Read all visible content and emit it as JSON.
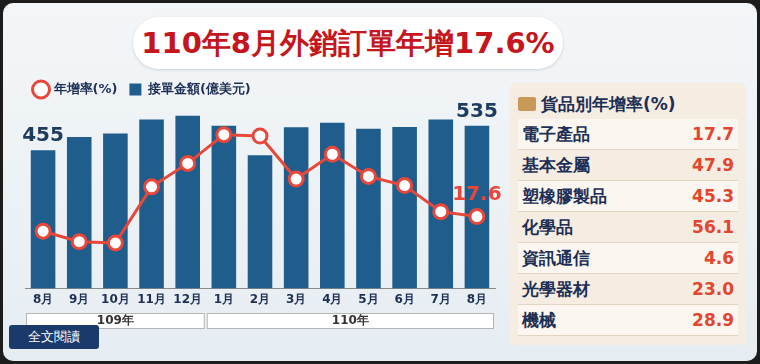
{
  "chart_data": {
    "type": "bar",
    "title": "110年8月外銷訂單年增17.6%",
    "categories": [
      "8月",
      "9月",
      "10月",
      "11月",
      "12月",
      "1月",
      "2月",
      "3月",
      "4月",
      "5月",
      "6月",
      "7月",
      "8月"
    ],
    "groups": [
      {
        "label": "109年",
        "count": 5
      },
      {
        "label": "110年",
        "count": 8
      }
    ],
    "series": [
      {
        "name": "接單金額(億美元)",
        "type": "bar",
        "color": "#1f5d8c",
        "values": [
          455,
          498,
          510,
          556,
          568,
          535,
          438,
          530,
          545,
          525,
          531,
          556,
          535
        ],
        "value_labels": [
          "455",
          null,
          null,
          null,
          null,
          null,
          null,
          null,
          null,
          null,
          null,
          null,
          "535"
        ]
      },
      {
        "name": "年增率(%)",
        "type": "line",
        "axis": "y2",
        "color": "#e8473a",
        "marker": "circle",
        "line_style": "solid",
        "values": [
          12,
          8,
          7.5,
          29,
          38,
          49,
          48.5,
          32,
          41.5,
          33,
          29.5,
          19.5,
          17.6
        ],
        "value_labels": [
          null,
          null,
          null,
          null,
          null,
          null,
          null,
          null,
          null,
          null,
          null,
          null,
          "17.6"
        ]
      }
    ],
    "ylim": [
      0,
      600
    ],
    "y2lim": [
      -10,
      60
    ],
    "legend": "top-left",
    "tick_labels": "x",
    "grid": false
  },
  "side_panel": {
    "title": "貨品別年增率(%)",
    "rows": [
      {
        "name": "電子產品",
        "value": "17.7"
      },
      {
        "name": "基本金屬",
        "value": "47.9"
      },
      {
        "name": "塑橡膠製品",
        "value": "45.3"
      },
      {
        "name": "化學品",
        "value": "56.1"
      },
      {
        "name": "資訊通信",
        "value": "4.6"
      },
      {
        "name": "光學器材",
        "value": "23.0"
      },
      {
        "name": "機械",
        "value": "28.9"
      }
    ]
  },
  "button": "全文閱讀"
}
